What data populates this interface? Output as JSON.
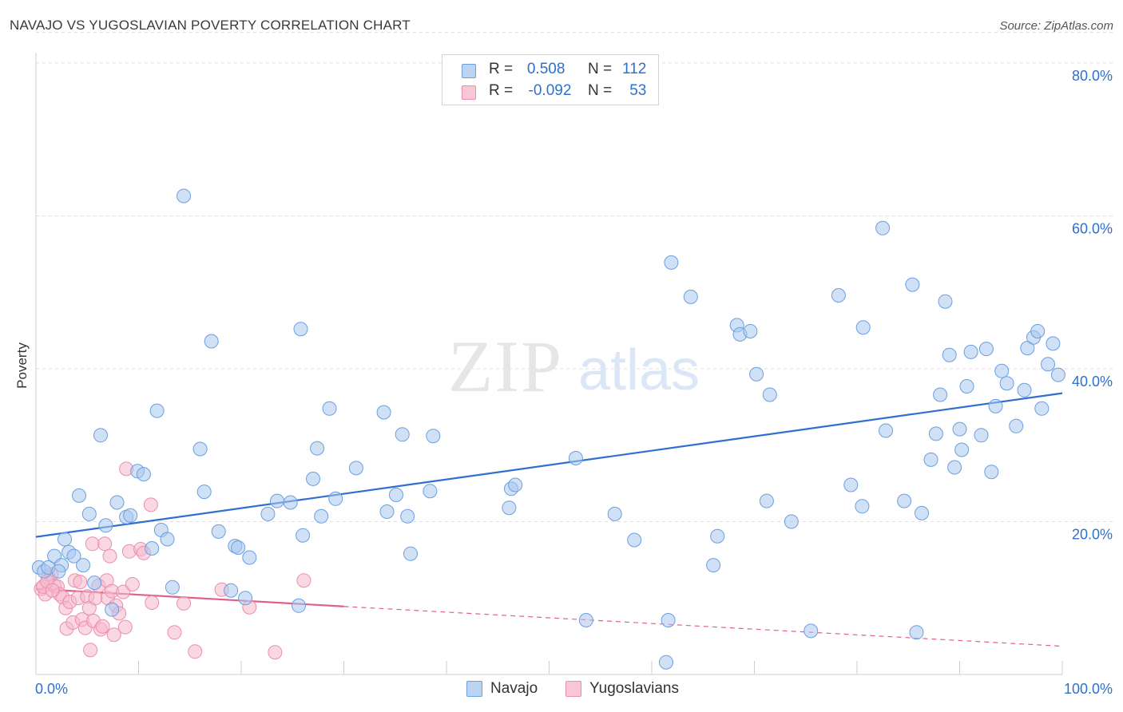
{
  "title": "NAVAJO VS YUGOSLAVIAN POVERTY CORRELATION CHART",
  "source": "Source: ZipAtlas.com",
  "watermark": {
    "zip": "ZIP",
    "atlas": "atlas"
  },
  "legend_stats": [
    {
      "r_label": "R =",
      "r_value": "0.508",
      "n_label": "N =",
      "n_value": "112"
    },
    {
      "r_label": "R =",
      "r_value": "-0.092",
      "n_label": "N =",
      "n_value": "53"
    }
  ],
  "colors": {
    "navajo_fill": "#a9c8ef",
    "navajo_stroke": "#6a9fe0",
    "navajo_line": "#2f6fce",
    "yugo_fill": "#f6b8cc",
    "yugo_stroke": "#ea8fab",
    "yugo_line": "#e0608d",
    "axis_label": "#2f6fce",
    "grid": "#dddddd"
  },
  "chart_data": {
    "type": "scatter",
    "title": "NAVAJO VS YUGOSLAVIAN POVERTY CORRELATION CHART",
    "xlabel": "",
    "ylabel": "Poverty",
    "xlim": [
      0,
      100
    ],
    "ylim": [
      0,
      84
    ],
    "x_tick_labels": [
      "0.0%",
      "100.0%"
    ],
    "y_ticks": [
      20,
      40,
      60,
      80
    ],
    "y_tick_labels": [
      "20.0%",
      "40.0%",
      "60.0%",
      "80.0%"
    ],
    "grid": "horizontal dashed",
    "legend_position": "bottom",
    "series": [
      {
        "name": "Navajo",
        "r": 0.508,
        "n": 112,
        "trend": {
          "x": [
            0,
            100
          ],
          "y": [
            18.0,
            36.8
          ],
          "style": "solid"
        },
        "points": [
          [
            0.3,
            14
          ],
          [
            0.8,
            13.5
          ],
          [
            1.2,
            14
          ],
          [
            1.8,
            15.5
          ],
          [
            2.5,
            14.3
          ],
          [
            2.8,
            17.7
          ],
          [
            3.2,
            16
          ],
          [
            3.7,
            15.5
          ],
          [
            4.2,
            23.4
          ],
          [
            4.6,
            14.3
          ],
          [
            5.2,
            21
          ],
          [
            5.7,
            12
          ],
          [
            6.3,
            31.3
          ],
          [
            6.8,
            19.5
          ],
          [
            7.4,
            8.5
          ],
          [
            7.9,
            22.5
          ],
          [
            8.8,
            20.6
          ],
          [
            9.2,
            20.8
          ],
          [
            9.9,
            26.6
          ],
          [
            10.5,
            26.2
          ],
          [
            11.3,
            16.5
          ],
          [
            11.8,
            34.5
          ],
          [
            12.2,
            18.9
          ],
          [
            12.8,
            17.7
          ],
          [
            13.3,
            11.4
          ],
          [
            14.4,
            62.6
          ],
          [
            16,
            29.5
          ],
          [
            16.4,
            23.9
          ],
          [
            17.1,
            43.6
          ],
          [
            17.8,
            18.7
          ],
          [
            19,
            11
          ],
          [
            19.4,
            16.8
          ],
          [
            19.7,
            16.6
          ],
          [
            20.4,
            10
          ],
          [
            20.8,
            15.3
          ],
          [
            22.6,
            21
          ],
          [
            23.5,
            22.7
          ],
          [
            24.8,
            22.5
          ],
          [
            25.6,
            9
          ],
          [
            26,
            18.2
          ],
          [
            25.8,
            45.2
          ],
          [
            27,
            25.6
          ],
          [
            27.4,
            29.6
          ],
          [
            27.8,
            20.7
          ],
          [
            28.6,
            34.8
          ],
          [
            29.2,
            23
          ],
          [
            31.2,
            27
          ],
          [
            33.9,
            34.3
          ],
          [
            34.2,
            21.3
          ],
          [
            35.1,
            23.5
          ],
          [
            35.7,
            31.4
          ],
          [
            36.2,
            20.7
          ],
          [
            36.5,
            15.8
          ],
          [
            38.4,
            24
          ],
          [
            38.7,
            31.2
          ],
          [
            46.1,
            21.8
          ],
          [
            46.3,
            24.3
          ],
          [
            46.7,
            24.8
          ],
          [
            52.6,
            28.3
          ],
          [
            53.6,
            7.1
          ],
          [
            56.4,
            21
          ],
          [
            58.3,
            17.6
          ],
          [
            61.4,
            1.6
          ],
          [
            61.6,
            7.1
          ],
          [
            61.9,
            53.9
          ],
          [
            63.8,
            49.4
          ],
          [
            66,
            14.3
          ],
          [
            66.4,
            18.1
          ],
          [
            68.3,
            45.7
          ],
          [
            68.6,
            44.5
          ],
          [
            69.6,
            44.9
          ],
          [
            70.2,
            39.3
          ],
          [
            71.2,
            22.7
          ],
          [
            71.5,
            36.6
          ],
          [
            73.6,
            20
          ],
          [
            75.5,
            5.7
          ],
          [
            78.2,
            49.6
          ],
          [
            79.4,
            24.8
          ],
          [
            80.5,
            22
          ],
          [
            80.6,
            45.4
          ],
          [
            82.5,
            58.4
          ],
          [
            82.8,
            31.9
          ],
          [
            84.6,
            22.7
          ],
          [
            85.4,
            51
          ],
          [
            85.8,
            5.5
          ],
          [
            86.3,
            21.1
          ],
          [
            87.2,
            28.1
          ],
          [
            87.7,
            31.5
          ],
          [
            88.1,
            36.6
          ],
          [
            88.6,
            48.8
          ],
          [
            89,
            41.8
          ],
          [
            89.5,
            27.1
          ],
          [
            90,
            32.1
          ],
          [
            90.2,
            29.4
          ],
          [
            90.7,
            37.7
          ],
          [
            91.1,
            42.2
          ],
          [
            92.1,
            31.3
          ],
          [
            92.6,
            42.6
          ],
          [
            93.1,
            26.5
          ],
          [
            93.5,
            35.1
          ],
          [
            94.1,
            39.7
          ],
          [
            94.6,
            38.1
          ],
          [
            95.5,
            32.5
          ],
          [
            96.3,
            37.2
          ],
          [
            96.6,
            42.7
          ],
          [
            97.2,
            44.1
          ],
          [
            97.6,
            44.9
          ],
          [
            98,
            34.8
          ],
          [
            98.6,
            40.6
          ],
          [
            99.1,
            43.3
          ],
          [
            99.6,
            39.2
          ],
          [
            2.2,
            13.5
          ]
        ]
      },
      {
        "name": "Yugoslavians",
        "r": -0.092,
        "n": 53,
        "trend": {
          "x_solid": [
            0,
            30
          ],
          "y_solid": [
            11.2,
            8.9
          ],
          "x_dashed": [
            30,
            100
          ],
          "y_dashed": [
            8.9,
            3.7
          ]
        },
        "points": [
          [
            0.5,
            11.2
          ],
          [
            0.9,
            10.5
          ],
          [
            1.2,
            12.7
          ],
          [
            1.5,
            13.1
          ],
          [
            1.8,
            11.6
          ],
          [
            2.1,
            11.5
          ],
          [
            2.3,
            10.5
          ],
          [
            2.6,
            10.1
          ],
          [
            2.9,
            8.7
          ],
          [
            3,
            6
          ],
          [
            3.3,
            9.5
          ],
          [
            3.6,
            6.8
          ],
          [
            3.8,
            12.3
          ],
          [
            4.1,
            10
          ],
          [
            4.3,
            12.1
          ],
          [
            4.5,
            7.2
          ],
          [
            4.8,
            6.1
          ],
          [
            5,
            10.2
          ],
          [
            5.2,
            8.7
          ],
          [
            5.3,
            3.2
          ],
          [
            5.5,
            17.1
          ],
          [
            5.6,
            7
          ],
          [
            5.8,
            10
          ],
          [
            6.1,
            11.6
          ],
          [
            6.3,
            5.9
          ],
          [
            6.5,
            6.3
          ],
          [
            6.7,
            17.1
          ],
          [
            6.9,
            12.3
          ],
          [
            7,
            10
          ],
          [
            7.2,
            15.5
          ],
          [
            7.4,
            10.9
          ],
          [
            7.6,
            5.2
          ],
          [
            7.8,
            9
          ],
          [
            8.1,
            8
          ],
          [
            8.5,
            10.8
          ],
          [
            8.7,
            6.2
          ],
          [
            8.8,
            26.9
          ],
          [
            9.1,
            16.1
          ],
          [
            9.4,
            11.8
          ],
          [
            10.2,
            16.4
          ],
          [
            10.5,
            15.9
          ],
          [
            11.2,
            22.2
          ],
          [
            11.3,
            9.4
          ],
          [
            13.5,
            5.5
          ],
          [
            14.4,
            9.3
          ],
          [
            15.5,
            3
          ],
          [
            18.1,
            11.1
          ],
          [
            20.8,
            8.8
          ],
          [
            23.3,
            2.9
          ],
          [
            26.1,
            12.3
          ],
          [
            0.7,
            11.5
          ],
          [
            1.1,
            12.2
          ],
          [
            1.6,
            11
          ]
        ]
      }
    ]
  }
}
